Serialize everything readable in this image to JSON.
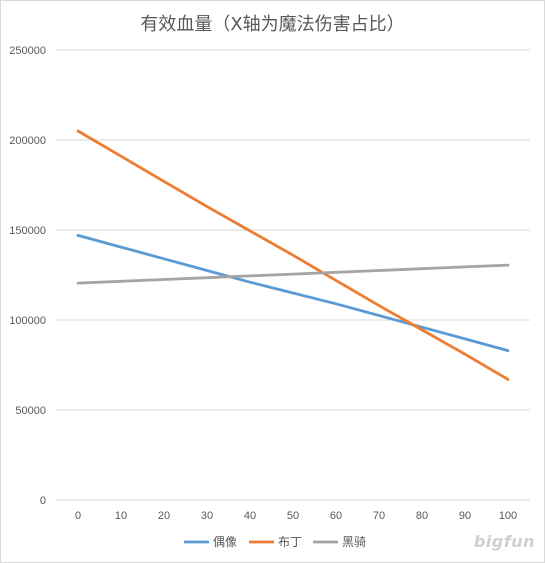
{
  "chart_data": {
    "type": "line",
    "title": "有效血量（X轴为魔法伤害占比）",
    "xlabel": "",
    "ylabel": "",
    "x": [
      0,
      10,
      20,
      30,
      40,
      50,
      60,
      70,
      80,
      90,
      100
    ],
    "xlim": [
      0,
      100
    ],
    "ylim": [
      0,
      250000
    ],
    "yticks": [
      0,
      50000,
      100000,
      150000,
      200000,
      250000
    ],
    "grid": "horizontal",
    "legend_position": "bottom",
    "series": [
      {
        "name": "偶像",
        "color": "#5b9bd5",
        "values": [
          147000,
          140500,
          134000,
          127500,
          121000,
          115000,
          109000,
          102500,
          96000,
          89500,
          83000
        ]
      },
      {
        "name": "布丁",
        "color": "#ed7d31",
        "values": [
          205000,
          191000,
          177000,
          163000,
          149500,
          136000,
          122000,
          108000,
          94500,
          81000,
          67000
        ]
      },
      {
        "name": "黑骑",
        "color": "#a5a5a5",
        "values": [
          120500,
          121500,
          122500,
          123500,
          124500,
          125500,
          126500,
          127500,
          128500,
          129500,
          130500
        ]
      }
    ]
  },
  "watermark_text": "bigfun"
}
